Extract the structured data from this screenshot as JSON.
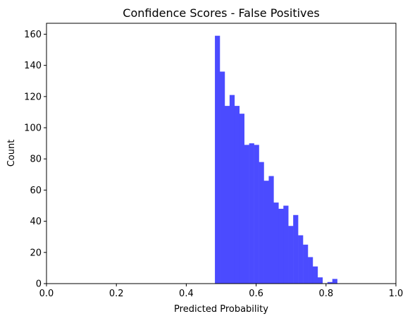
{
  "chart_data": {
    "type": "bar",
    "title": "Confidence Scores - False Positives",
    "xlabel": "Predicted Probability",
    "ylabel": "Count",
    "xlim": [
      0.0,
      1.0
    ],
    "ylim": [
      0,
      167
    ],
    "xticks": [
      "0.0",
      "0.2",
      "0.4",
      "0.6",
      "0.8",
      "1.0"
    ],
    "yticks": [
      "0",
      "20",
      "40",
      "60",
      "80",
      "100",
      "120",
      "140",
      "160"
    ],
    "bar_color": "#4B4BFF",
    "grid": false,
    "legend": "none",
    "bin_width": 0.0139,
    "bins": [
      {
        "x0": 0.482,
        "count": 159
      },
      {
        "x0": 0.496,
        "count": 136
      },
      {
        "x0": 0.51,
        "count": 114
      },
      {
        "x0": 0.524,
        "count": 121
      },
      {
        "x0": 0.538,
        "count": 114
      },
      {
        "x0": 0.552,
        "count": 109
      },
      {
        "x0": 0.566,
        "count": 89
      },
      {
        "x0": 0.58,
        "count": 90
      },
      {
        "x0": 0.594,
        "count": 89
      },
      {
        "x0": 0.608,
        "count": 78
      },
      {
        "x0": 0.622,
        "count": 66
      },
      {
        "x0": 0.636,
        "count": 69
      },
      {
        "x0": 0.65,
        "count": 52
      },
      {
        "x0": 0.664,
        "count": 48
      },
      {
        "x0": 0.678,
        "count": 50
      },
      {
        "x0": 0.692,
        "count": 37
      },
      {
        "x0": 0.706,
        "count": 44
      },
      {
        "x0": 0.72,
        "count": 31
      },
      {
        "x0": 0.734,
        "count": 25
      },
      {
        "x0": 0.748,
        "count": 17
      },
      {
        "x0": 0.762,
        "count": 11
      },
      {
        "x0": 0.776,
        "count": 4
      },
      {
        "x0": 0.79,
        "count": 0
      },
      {
        "x0": 0.804,
        "count": 1
      },
      {
        "x0": 0.818,
        "count": 3
      }
    ]
  }
}
